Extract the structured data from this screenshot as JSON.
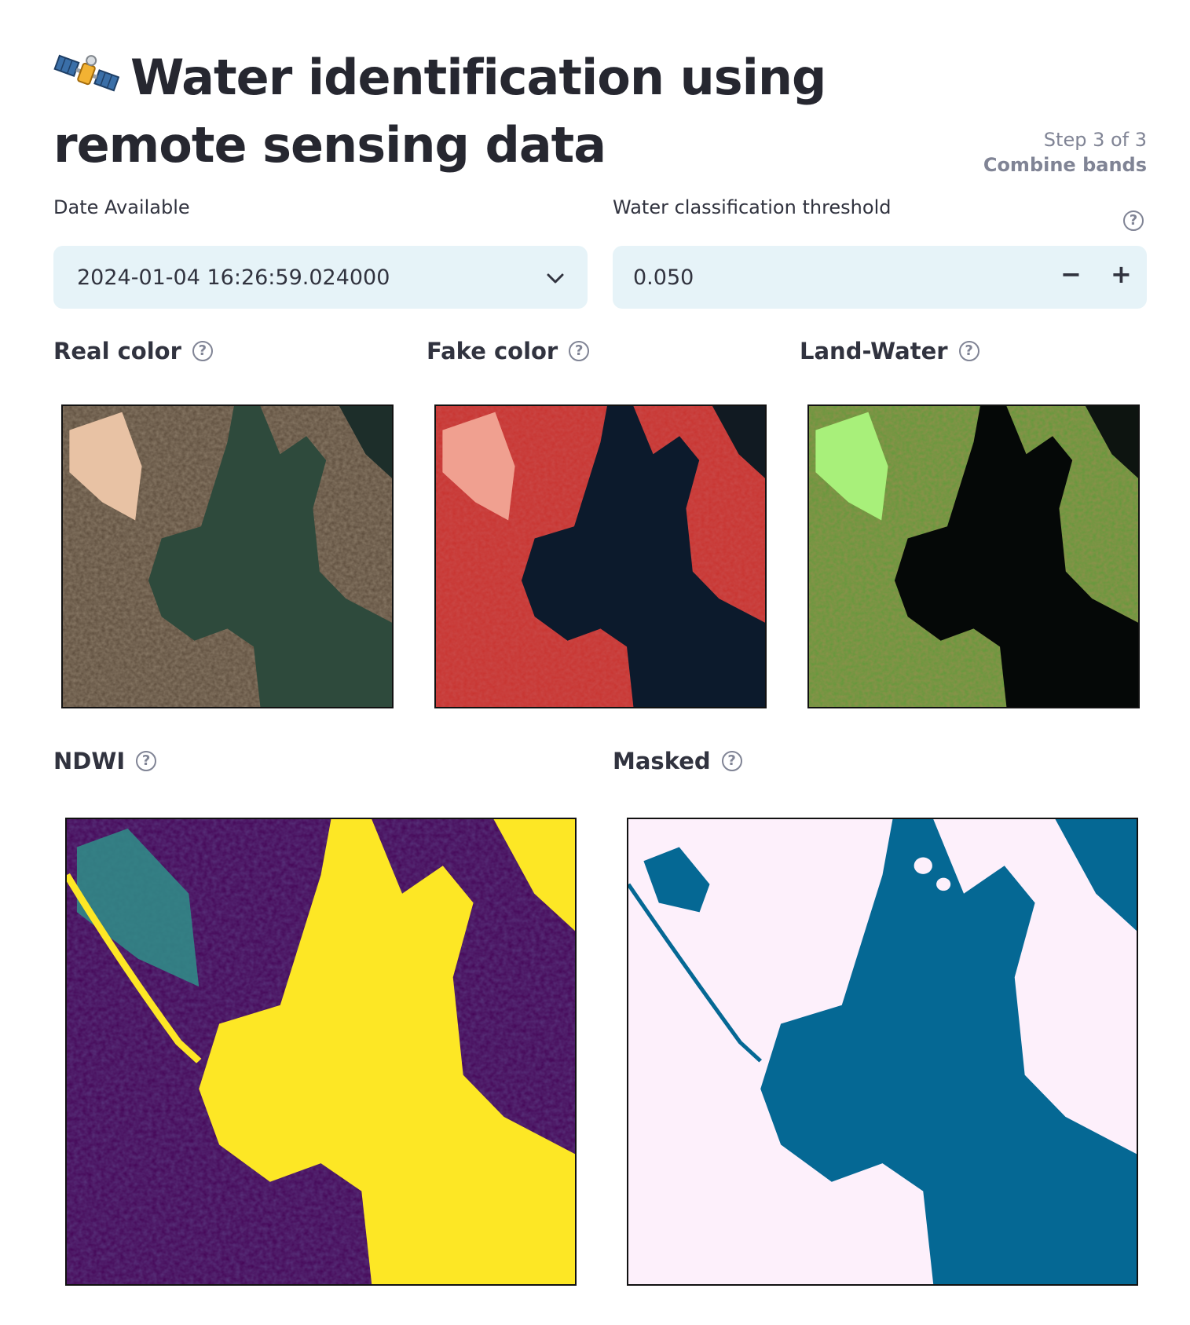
{
  "header": {
    "title": "Water identification using remote sensing data",
    "icon": "satellite-icon",
    "step_line": "Step 3 of 3",
    "step_name": "Combine bands"
  },
  "date_select": {
    "label": "Date Available",
    "value": "2024-01-04 16:26:59.024000",
    "icon": "chevron-down-icon"
  },
  "threshold": {
    "label": "Water classification threshold",
    "value": "0.050",
    "decrement": "−",
    "increment": "+"
  },
  "help_glyph": "?",
  "panels": {
    "real_color": "Real color",
    "fake_color": "Fake color",
    "land_water": "Land-Water",
    "ndwi": "NDWI",
    "masked": "Masked"
  },
  "colors": {
    "input_bg": "#e6f3f8",
    "ndwi_low": "#440154",
    "ndwi_high": "#fde725",
    "mask_water": "#056894",
    "mask_land": "#fdf0fb"
  }
}
